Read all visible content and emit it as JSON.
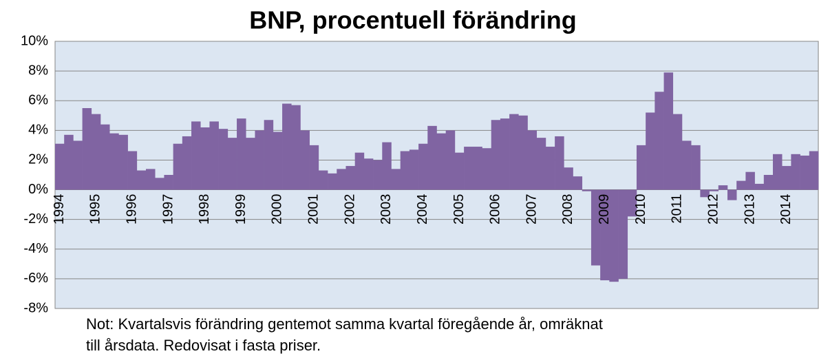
{
  "chart_data": {
    "type": "bar",
    "title": "BNP, procentuell förändring",
    "categories": [
      "1994",
      null,
      null,
      null,
      "1995",
      null,
      null,
      null,
      "1996",
      null,
      null,
      null,
      "1997",
      null,
      null,
      null,
      "1998",
      null,
      null,
      null,
      "1999",
      null,
      null,
      null,
      "2000",
      null,
      null,
      null,
      "2001",
      null,
      null,
      null,
      "2002",
      null,
      null,
      null,
      "2003",
      null,
      null,
      null,
      "2004",
      null,
      null,
      null,
      "2005",
      null,
      null,
      null,
      "2006",
      null,
      null,
      null,
      "2007",
      null,
      null,
      null,
      "2008",
      null,
      null,
      null,
      "2009",
      null,
      null,
      null,
      "2010",
      null,
      null,
      null,
      "2011",
      null,
      null,
      null,
      "2012",
      null,
      null,
      null,
      "2013",
      null,
      null,
      null,
      "2014",
      null,
      null,
      null
    ],
    "values": [
      3.1,
      3.7,
      3.3,
      5.5,
      5.1,
      4.4,
      3.8,
      3.7,
      2.6,
      1.3,
      1.4,
      0.8,
      1.0,
      3.1,
      3.6,
      4.6,
      4.2,
      4.6,
      4.1,
      3.5,
      4.8,
      3.5,
      4.0,
      4.7,
      3.9,
      5.8,
      5.7,
      4.0,
      3.0,
      1.3,
      1.1,
      1.4,
      1.6,
      2.5,
      2.1,
      2.0,
      3.2,
      1.4,
      2.6,
      2.7,
      3.1,
      4.3,
      3.8,
      4.0,
      2.5,
      2.9,
      2.9,
      2.8,
      4.7,
      4.8,
      5.1,
      5.0,
      4.0,
      3.5,
      2.9,
      3.6,
      1.5,
      0.9,
      -0.1,
      -5.1,
      -6.1,
      -6.2,
      -6.0,
      -1.8,
      3.0,
      5.2,
      6.6,
      7.9,
      5.1,
      3.3,
      3.0,
      -0.5,
      -0.1,
      0.3,
      -0.7,
      0.6,
      1.2,
      0.4,
      1.0,
      2.4,
      1.6,
      2.4,
      2.3,
      2.6
    ],
    "color": "#8064a2",
    "background": "#dce6f2",
    "ylim": [
      -8,
      10
    ],
    "yticks": [
      {
        "value": -8,
        "label": "-8%"
      },
      {
        "value": -6,
        "label": "-6%"
      },
      {
        "value": -4,
        "label": "-4%"
      },
      {
        "value": -2,
        "label": "-2%"
      },
      {
        "value": 0,
        "label": "0%"
      },
      {
        "value": 2,
        "label": "2%"
      },
      {
        "value": 4,
        "label": "4%"
      },
      {
        "value": 6,
        "label": "6%"
      },
      {
        "value": 8,
        "label": "8%"
      },
      {
        "value": 10,
        "label": "10%"
      }
    ],
    "grid": true,
    "note": [
      "Not: Kvartalsvis förändring gentemot samma kvartal föregående år, omräknat",
      "till årsdata. Redovisat i fasta priser."
    ]
  }
}
